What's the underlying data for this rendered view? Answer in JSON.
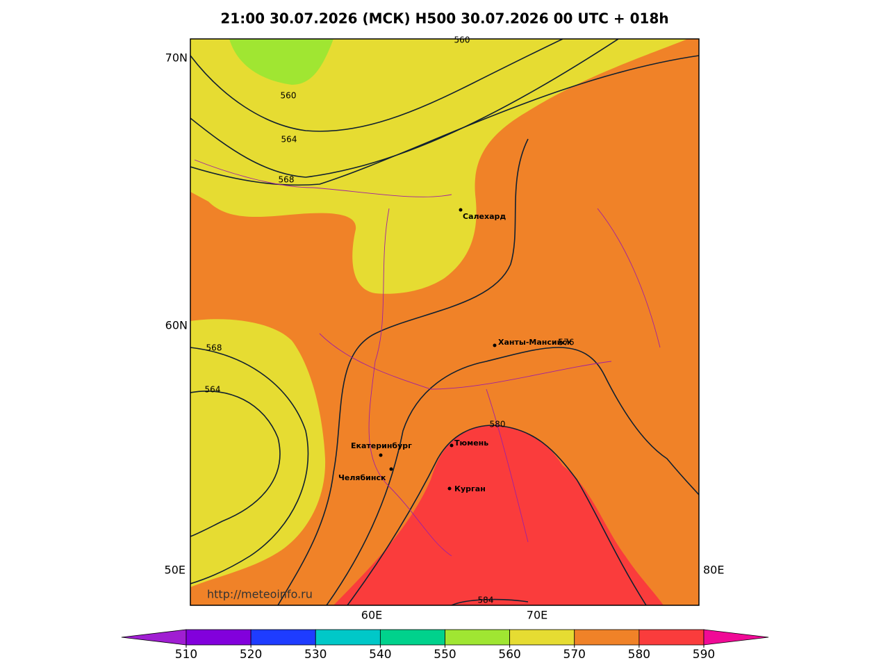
{
  "title": "21:00 30.07.2026 (МСК) H500  30.07.2026 00 UTC + 018h",
  "map": {
    "lat_labels": [
      "70N",
      "60N"
    ],
    "lon_labels": [
      "50E",
      "60E",
      "70E",
      "80E"
    ],
    "contour_labels": [
      560,
      560,
      564,
      568,
      568,
      564,
      576,
      580,
      584
    ],
    "cities": [
      "Салехард",
      "Ханты-Мансийск",
      "Екатеринбург",
      "Тюмень",
      "Челябинск",
      "Курган"
    ],
    "url": "http://meteoinfo.ru"
  },
  "colorbar": {
    "ticks": [
      510,
      520,
      530,
      540,
      550,
      560,
      570,
      580,
      590
    ],
    "colors": [
      "#a01ed2",
      "#8200dc",
      "#1e3cff",
      "#00c8c8",
      "#00d28c",
      "#a0e632",
      "#e6dc32",
      "#f08228",
      "#fa3c3c",
      "#f00a96"
    ]
  }
}
